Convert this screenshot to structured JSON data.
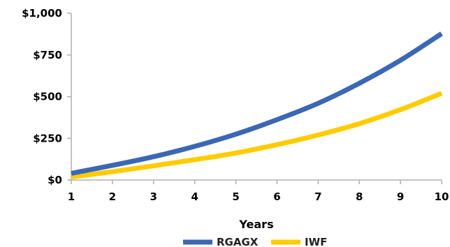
{
  "chart_data": {
    "type": "line",
    "title": "",
    "xlabel": "Years",
    "ylabel": "",
    "x": [
      1,
      2,
      3,
      4,
      5,
      6,
      7,
      8,
      9,
      10
    ],
    "x_ticks": [
      "1",
      "2",
      "3",
      "4",
      "5",
      "6",
      "7",
      "8",
      "9",
      "10"
    ],
    "xlim": [
      1,
      10
    ],
    "y_ticks": [
      0,
      250,
      500,
      750,
      1000
    ],
    "y_tick_labels": [
      "$0",
      "$250",
      "$500",
      "$750",
      "$1,000"
    ],
    "ylim": [
      0,
      1000
    ],
    "grid": false,
    "legend_position": "bottom-center",
    "series": [
      {
        "name": "RGAGX",
        "color": "#3c67b4",
        "values": [
          40,
          88,
          140,
          202,
          275,
          362,
          460,
          580,
          718,
          878
        ]
      },
      {
        "name": "IWF",
        "color": "#ffcc00",
        "values": [
          18,
          50,
          85,
          122,
          162,
          212,
          270,
          338,
          422,
          520
        ]
      }
    ]
  }
}
